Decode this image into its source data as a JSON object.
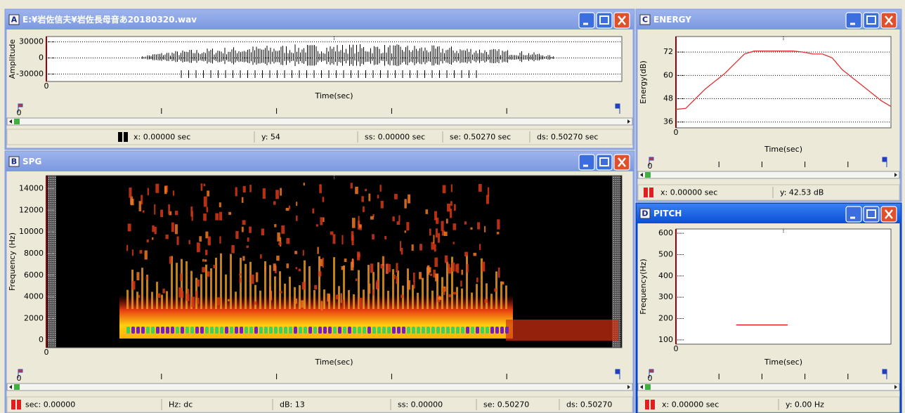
{
  "windows": [
    {
      "letter": "A",
      "title": "E:¥岩佐信夫¥岩佐長母音あ20180320.wav",
      "plot": {
        "y_label": "Amplitude",
        "ylim": [
          -44000,
          40000
        ],
        "yticks": [
          30000,
          0,
          -30000
        ],
        "grid": true,
        "x_start": 0,
        "x_label": "Time(sec)"
      },
      "ruler_start": 0,
      "status": [
        "x: 0.00000 sec",
        "y: 54",
        "ss: 0.00000 sec",
        "se: 0.50270 sec",
        "ds: 0.50270 sec"
      ]
    },
    {
      "letter": "B",
      "title": "SPG",
      "plot": {
        "y_label": "Frequency (Hz)",
        "ylim": [
          -700,
          15200
        ],
        "yticks": [
          14000,
          12000,
          10000,
          8000,
          6000,
          4000,
          2000,
          0
        ],
        "grid": false,
        "x_start": 0,
        "x_label": "Time(sec)"
      },
      "ruler_start": 0,
      "status": [
        "sec: 0.00000",
        "Hz: dc",
        "dB: 13",
        "ss: 0.00000",
        "se: 0.50270",
        "ds: 0.50270"
      ]
    },
    {
      "letter": "C",
      "title": "ENERGY",
      "plot": {
        "type": "line",
        "y_label": "Energy(dB)",
        "ylim": [
          33,
          80
        ],
        "yticks": [
          72,
          60,
          48,
          36
        ],
        "grid": true,
        "x_start": 0,
        "x_label": "Time(sec)",
        "color": "#e03030",
        "values": [
          42.5,
          43,
          48,
          53,
          57,
          61,
          66,
          71,
          72.5,
          72.5,
          72.5,
          72.5,
          72.5,
          72,
          71,
          71,
          69,
          63,
          59,
          55,
          51,
          47,
          44
        ]
      },
      "ruler_start": 0,
      "status": [
        "x: 0.00000 sec",
        "y: 42.53 dB"
      ]
    },
    {
      "letter": "D",
      "title": "PITCH",
      "plot": {
        "type": "segment",
        "y_label": "Frequency(Hz)",
        "ylim": [
          80,
          620
        ],
        "yticks": [
          600,
          500,
          400,
          300,
          200,
          100
        ],
        "grid": false,
        "x_start": 0,
        "x_label": "Time(sec)",
        "color": "#e02020",
        "values": [
          170
        ]
      },
      "ruler_start": 0,
      "status": [
        "x: 0.00000 sec",
        "y: 0.00 Hz"
      ]
    }
  ]
}
